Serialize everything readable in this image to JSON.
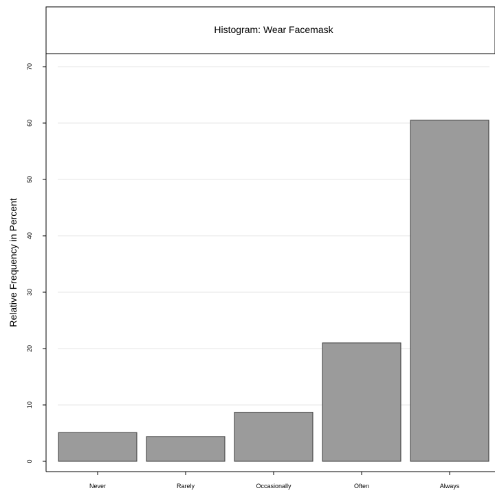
{
  "chart_data": {
    "type": "bar",
    "title": "Histogram: Wear Facemask",
    "xlabel": "",
    "ylabel": "Relative Frequency in Percent",
    "categories": [
      "Never",
      "Rarely",
      "Occasionally",
      "Often",
      "Always"
    ],
    "values": [
      5.1,
      4.4,
      8.7,
      21.0,
      60.5
    ],
    "ylim": [
      0,
      72
    ],
    "yticks": [
      0,
      10,
      20,
      30,
      40,
      50,
      60,
      70
    ],
    "grid": true,
    "legend": "none",
    "colors": {
      "bar_fill": "#9b9b9b",
      "bar_edge": "#3a3a3a",
      "grid": "#e6e6e6"
    }
  }
}
